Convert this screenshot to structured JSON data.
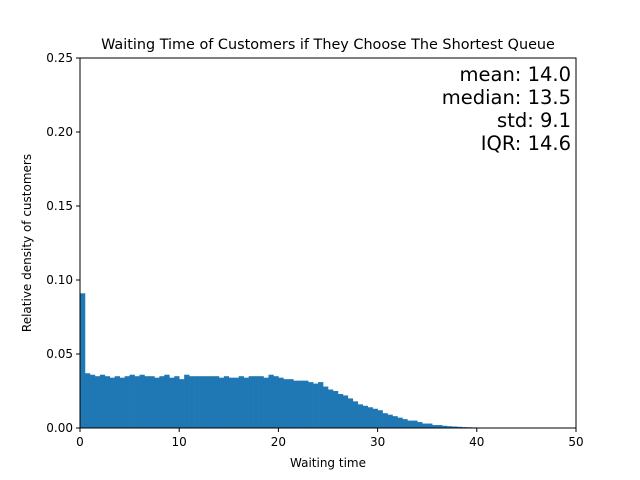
{
  "chart_data": {
    "type": "bar",
    "title": "Waiting Time of Customers if They Choose The Shortest Queue",
    "xlabel": "Waiting time",
    "ylabel": "Relative density of customers",
    "xlim": [
      0,
      50
    ],
    "ylim": [
      0,
      0.25
    ],
    "x_ticks": [
      "0",
      "10",
      "20",
      "30",
      "40",
      "50"
    ],
    "y_ticks": [
      "0.00",
      "0.05",
      "0.10",
      "0.15",
      "0.20",
      "0.25"
    ],
    "grid": false,
    "bar_color": "#1f77b4",
    "bin_width": 0.5,
    "bin_start": 0,
    "values": [
      0.091,
      0.037,
      0.036,
      0.035,
      0.036,
      0.035,
      0.034,
      0.035,
      0.034,
      0.035,
      0.036,
      0.035,
      0.036,
      0.035,
      0.035,
      0.034,
      0.035,
      0.036,
      0.034,
      0.035,
      0.033,
      0.036,
      0.035,
      0.035,
      0.035,
      0.035,
      0.035,
      0.035,
      0.034,
      0.035,
      0.034,
      0.034,
      0.035,
      0.034,
      0.035,
      0.035,
      0.035,
      0.034,
      0.036,
      0.035,
      0.034,
      0.033,
      0.033,
      0.032,
      0.032,
      0.032,
      0.031,
      0.03,
      0.031,
      0.028,
      0.026,
      0.025,
      0.023,
      0.022,
      0.02,
      0.018,
      0.016,
      0.015,
      0.014,
      0.013,
      0.012,
      0.01,
      0.009,
      0.008,
      0.007,
      0.006,
      0.005,
      0.005,
      0.004,
      0.003,
      0.003,
      0.002,
      0.002,
      0.0015,
      0.0012,
      0.001,
      0.0008,
      0.0006,
      0.0005,
      0.0004,
      0.0003,
      0.0002,
      0.0001,
      0.0001
    ],
    "annotations": [
      "mean: 14.0",
      "median: 13.5",
      "std: 9.1",
      "IQR: 14.6"
    ]
  }
}
